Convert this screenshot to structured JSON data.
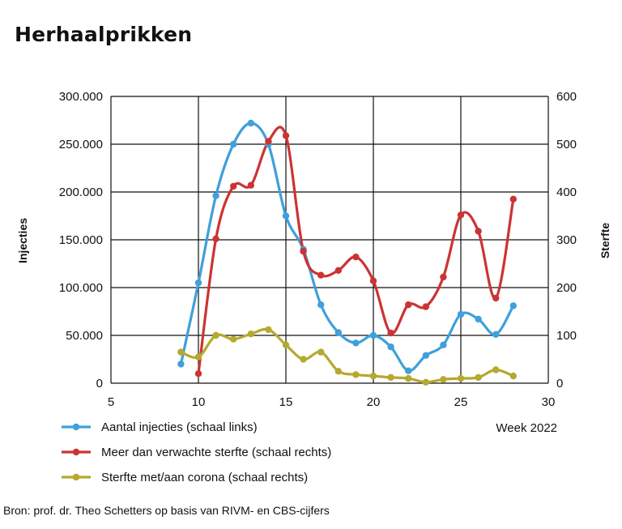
{
  "title": "Herhaalprikken",
  "source": "Bron: prof. dr. Theo Schetters op basis van RIVM- en CBS-cijfers",
  "chart_data": {
    "type": "line",
    "xlabel": "Week 2022",
    "ylabel": "Injecties",
    "y2label": "Sterfte",
    "xlim": [
      5,
      30
    ],
    "ylim": [
      0,
      300000
    ],
    "y2lim": [
      0,
      600
    ],
    "x_ticks": [
      "5",
      "10",
      "15",
      "20",
      "25",
      "30"
    ],
    "y_ticks": [
      "0",
      "50.000",
      "100.000",
      "150.000",
      "200.000",
      "250.000",
      "300.000"
    ],
    "y2_ticks": [
      "0",
      "100",
      "200",
      "300",
      "400",
      "500",
      "600"
    ],
    "grid": true,
    "legend": "bottom",
    "series": [
      {
        "name": "Aantal injecties (schaal links)",
        "axis": "left",
        "color": "#3fa0db",
        "x": [
          9,
          10,
          11,
          12,
          13,
          14,
          15,
          16,
          17,
          18,
          19,
          20,
          21,
          22,
          23,
          24,
          25,
          26,
          27,
          28
        ],
        "y": [
          20000,
          105000,
          196000,
          250000,
          272000,
          250000,
          175000,
          140000,
          82000,
          53000,
          42000,
          50000,
          38000,
          13000,
          29000,
          40000,
          72000,
          67000,
          51000,
          81000
        ]
      },
      {
        "name": "Meer dan verwachte sterfte (schaal rechts)",
        "axis": "right",
        "color": "#cc3333",
        "x": [
          10,
          11,
          12,
          13,
          14,
          15,
          16,
          17,
          18,
          19,
          20,
          21,
          22,
          23,
          24,
          25,
          26,
          27,
          28
        ],
        "y": [
          20,
          302,
          412,
          414,
          506,
          518,
          276,
          226,
          236,
          264,
          214,
          105,
          164,
          160,
          222,
          352,
          318,
          178,
          385
        ]
      },
      {
        "name": "Sterfte met/aan corona (schaal rechts)",
        "axis": "right",
        "color": "#b5a92e",
        "x": [
          9,
          10,
          11,
          12,
          13,
          14,
          15,
          16,
          17,
          18,
          19,
          20,
          21,
          22,
          23,
          24,
          25,
          26,
          27,
          28
        ],
        "y": [
          65,
          55,
          100,
          92,
          103,
          112,
          80,
          50,
          65,
          25,
          18,
          15,
          12,
          10,
          2,
          8,
          10,
          12,
          28,
          15
        ]
      }
    ]
  }
}
